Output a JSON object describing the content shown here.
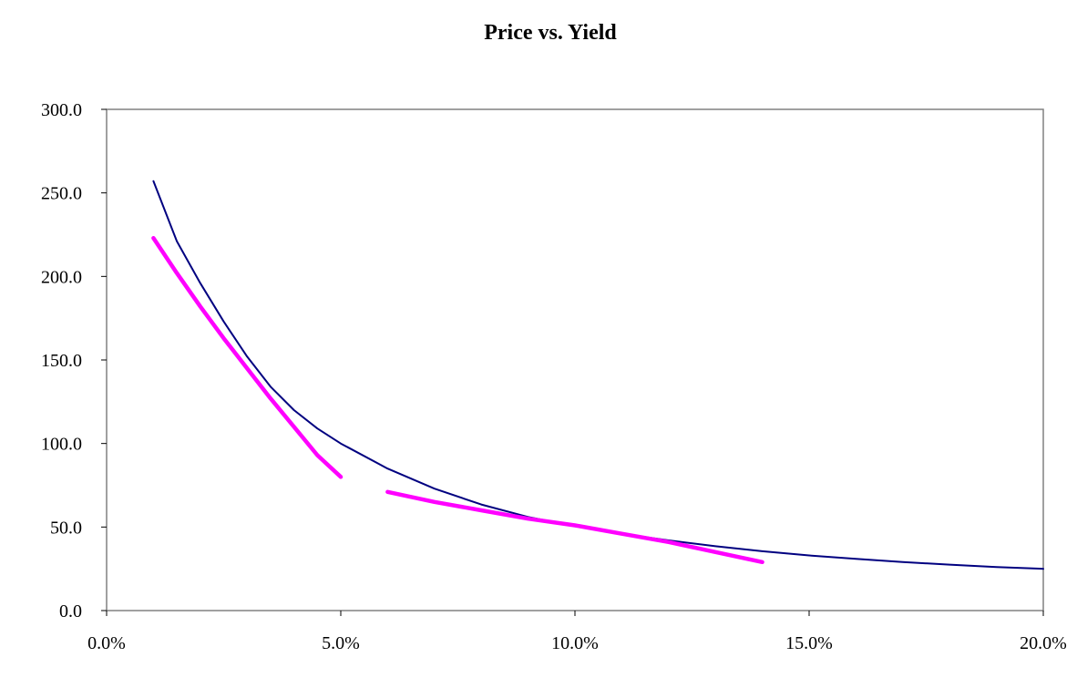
{
  "chart_data": {
    "type": "line",
    "title": "Price vs. Yield",
    "xlabel": "",
    "ylabel": "",
    "xlim": [
      0,
      0.2
    ],
    "ylim": [
      0,
      300
    ],
    "x_ticks": [
      0,
      0.05,
      0.1,
      0.15,
      0.2
    ],
    "x_tick_labels": [
      "0.0%",
      "5.0%",
      "10.0%",
      "15.0%",
      "20.0%"
    ],
    "y_ticks": [
      0,
      50,
      100,
      150,
      200,
      250,
      300
    ],
    "y_tick_labels": [
      "0.0",
      "50.0",
      "100.0",
      "150.0",
      "200.0",
      "250.0",
      "300.0"
    ],
    "grid": false,
    "legend": "none",
    "series": [
      {
        "color": "#000080",
        "style": "thin-line",
        "x": [
          0.01,
          0.015,
          0.02,
          0.025,
          0.03,
          0.035,
          0.04,
          0.045,
          0.05,
          0.06,
          0.07,
          0.08,
          0.09,
          0.1,
          0.11,
          0.12,
          0.13,
          0.14,
          0.15,
          0.16,
          0.17,
          0.18,
          0.19,
          0.2
        ],
        "y": [
          257,
          221,
          196,
          173,
          152,
          134,
          120,
          109,
          100,
          85,
          73,
          63.5,
          56,
          50.5,
          46,
          42,
          38.5,
          35.5,
          33,
          31,
          29,
          27.5,
          26,
          25
        ]
      },
      {
        "color": "#ff00ff",
        "style": "thick-line",
        "x": [
          0.01,
          0.015,
          0.02,
          0.025,
          0.03,
          0.035,
          0.04,
          0.045,
          0.05
        ],
        "y": [
          223,
          202,
          182,
          163,
          145,
          127,
          110,
          93,
          80
        ]
      },
      {
        "color": "#ff00ff",
        "style": "thick-line",
        "x": [
          0.06,
          0.07,
          0.08,
          0.09,
          0.1,
          0.11,
          0.12,
          0.13,
          0.14
        ],
        "y": [
          71,
          65,
          60,
          55,
          51,
          46,
          41,
          35,
          29
        ]
      }
    ]
  }
}
